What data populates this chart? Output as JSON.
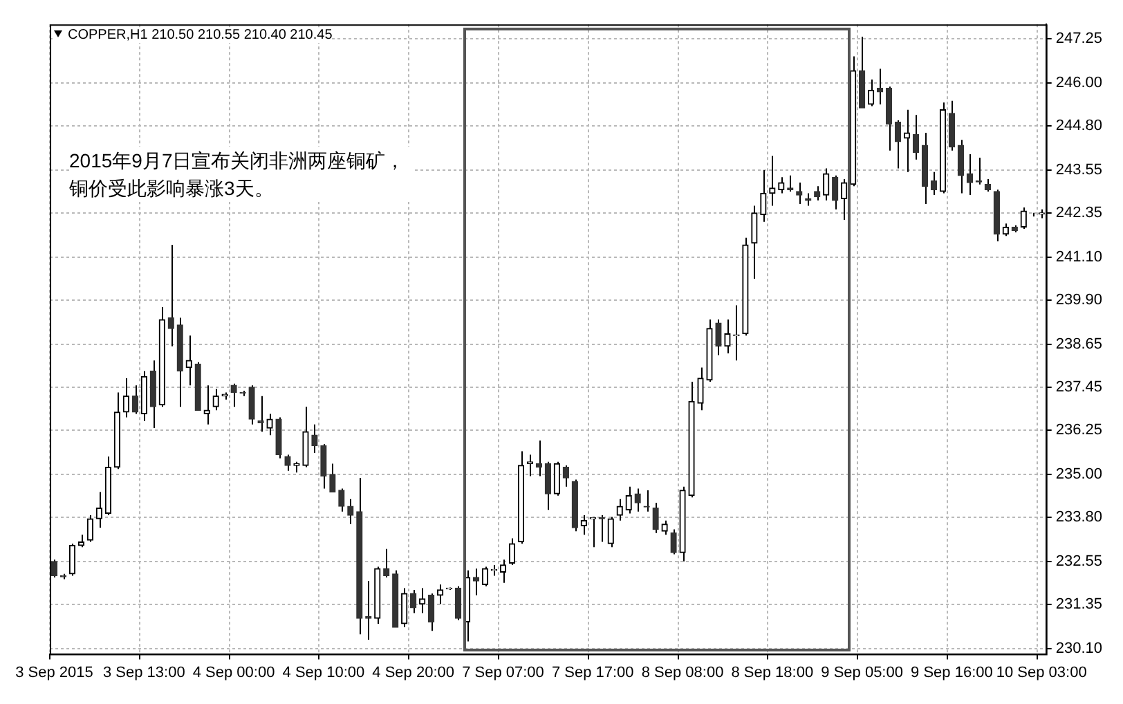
{
  "chart_data": {
    "type": "candlestick",
    "title": "COPPER,H1  210.50 210.55 210.40 210.45",
    "annotations": [
      "2015年9月7日宣布关闭非洲两座铜矿，铜价受此影响暴涨3天。"
    ],
    "categories": [
      "3 Sep 2015",
      null,
      null,
      null,
      null,
      null,
      null,
      null,
      null,
      null,
      "3 Sep 13:00",
      null,
      null,
      null,
      null,
      null,
      null,
      null,
      null,
      null,
      "4 Sep 00:00",
      null,
      null,
      null,
      null,
      null,
      null,
      null,
      null,
      null,
      "4 Sep 10:00",
      null,
      null,
      null,
      null,
      null,
      null,
      null,
      null,
      null,
      "4 Sep 20:00",
      null,
      null,
      null,
      null,
      null,
      null,
      null,
      null,
      null,
      "7 Sep 07:00",
      null,
      null,
      null,
      null,
      null,
      null,
      null,
      null,
      null,
      "7 Sep 17:00",
      null,
      null,
      null,
      null,
      null,
      null,
      null,
      null,
      null,
      "8 Sep 08:00",
      null,
      null,
      null,
      null,
      null,
      null,
      null,
      null,
      null,
      "8 Sep 18:00",
      null,
      null,
      null,
      null,
      null,
      null,
      null,
      null,
      null,
      "9 Sep 05:00",
      null,
      null,
      null,
      null,
      null,
      null,
      null,
      null,
      null,
      "9 Sep 16:00",
      null,
      null,
      null,
      null,
      null,
      null,
      null,
      null,
      null,
      "10 Sep 03:00"
    ],
    "ohlc": [
      [
        232.55,
        232.6,
        232.1,
        232.15
      ],
      [
        232.15,
        232.2,
        232.05,
        232.12
      ],
      [
        232.2,
        233.05,
        232.15,
        233.0
      ],
      [
        233.0,
        233.3,
        232.95,
        233.1
      ],
      [
        233.15,
        233.85,
        233.1,
        233.75
      ],
      [
        233.75,
        234.5,
        233.5,
        234.05
      ],
      [
        233.9,
        235.5,
        233.85,
        235.2
      ],
      [
        235.2,
        237.3,
        235.15,
        236.75
      ],
      [
        236.75,
        237.7,
        236.6,
        237.2
      ],
      [
        237.2,
        237.5,
        236.7,
        236.75
      ],
      [
        236.7,
        237.9,
        236.5,
        237.75
      ],
      [
        237.9,
        238.2,
        236.3,
        236.9
      ],
      [
        236.95,
        239.7,
        236.9,
        239.35
      ],
      [
        239.4,
        241.45,
        238.6,
        239.1
      ],
      [
        239.2,
        239.4,
        236.9,
        237.9
      ],
      [
        238.0,
        238.9,
        237.5,
        238.2
      ],
      [
        238.1,
        238.15,
        236.8,
        236.8
      ],
      [
        236.7,
        237.5,
        236.4,
        236.8
      ],
      [
        236.9,
        237.4,
        236.8,
        237.2
      ],
      [
        237.2,
        237.3,
        237.1,
        237.25
      ],
      [
        237.5,
        237.55,
        236.9,
        237.3
      ],
      [
        237.3,
        237.35,
        237.2,
        237.28
      ],
      [
        237.45,
        237.5,
        236.4,
        236.55
      ],
      [
        236.5,
        237.2,
        236.2,
        236.45
      ],
      [
        236.3,
        236.7,
        236.1,
        236.55
      ],
      [
        236.55,
        236.6,
        235.45,
        235.55
      ],
      [
        235.5,
        235.55,
        235.1,
        235.25
      ],
      [
        235.25,
        235.35,
        235.05,
        235.3
      ],
      [
        235.25,
        236.9,
        235.2,
        236.2
      ],
      [
        236.1,
        236.4,
        235.6,
        235.8
      ],
      [
        235.8,
        235.85,
        234.6,
        234.95
      ],
      [
        235.0,
        235.3,
        234.5,
        234.5
      ],
      [
        234.55,
        234.6,
        233.95,
        234.1
      ],
      [
        234.1,
        234.3,
        233.6,
        233.85
      ],
      [
        233.95,
        234.9,
        230.5,
        230.95
      ],
      [
        231.0,
        232.0,
        230.35,
        230.95
      ],
      [
        230.95,
        232.4,
        230.8,
        232.35
      ],
      [
        232.35,
        232.9,
        232.1,
        232.15
      ],
      [
        232.2,
        232.3,
        230.7,
        230.7
      ],
      [
        230.8,
        231.8,
        230.7,
        231.65
      ],
      [
        231.65,
        231.75,
        231.1,
        231.25
      ],
      [
        231.35,
        231.8,
        231.1,
        231.5
      ],
      [
        231.6,
        231.65,
        230.6,
        230.85
      ],
      [
        231.6,
        231.9,
        231.35,
        231.75
      ],
      [
        231.78,
        231.82,
        231.75,
        231.8
      ],
      [
        231.8,
        231.85,
        230.9,
        230.95
      ],
      [
        230.85,
        232.3,
        230.3,
        232.1
      ],
      [
        232.1,
        232.35,
        231.6,
        232.0
      ],
      [
        231.9,
        232.4,
        231.85,
        232.35
      ],
      [
        232.3,
        232.45,
        232.15,
        232.32
      ],
      [
        232.25,
        232.6,
        231.95,
        232.45
      ],
      [
        232.5,
        233.2,
        232.45,
        233.05
      ],
      [
        233.1,
        235.65,
        233.05,
        235.25
      ],
      [
        235.3,
        235.55,
        234.95,
        235.35
      ],
      [
        235.3,
        235.95,
        234.95,
        235.2
      ],
      [
        235.3,
        235.35,
        234.0,
        234.45
      ],
      [
        234.45,
        235.35,
        234.4,
        235.3
      ],
      [
        235.2,
        235.25,
        234.65,
        234.9
      ],
      [
        234.8,
        234.85,
        233.4,
        233.5
      ],
      [
        233.55,
        233.85,
        233.3,
        233.7
      ],
      [
        233.75,
        233.8,
        232.95,
        233.78
      ],
      [
        233.78,
        233.85,
        233.1,
        233.75
      ],
      [
        233.05,
        233.8,
        232.95,
        233.75
      ],
      [
        233.85,
        234.3,
        233.7,
        234.1
      ],
      [
        234.0,
        234.65,
        233.9,
        234.4
      ],
      [
        234.45,
        234.6,
        233.95,
        234.2
      ],
      [
        234.1,
        234.55,
        233.95,
        234.08
      ],
      [
        234.05,
        234.2,
        233.35,
        233.45
      ],
      [
        233.4,
        233.7,
        233.3,
        233.6
      ],
      [
        233.35,
        233.45,
        232.75,
        232.8
      ],
      [
        232.8,
        234.65,
        232.55,
        234.55
      ],
      [
        234.4,
        237.6,
        234.35,
        237.05
      ],
      [
        237.0,
        238.0,
        236.8,
        237.7
      ],
      [
        237.65,
        239.35,
        237.6,
        239.1
      ],
      [
        239.25,
        239.35,
        238.35,
        238.6
      ],
      [
        238.6,
        239.35,
        238.4,
        238.95
      ],
      [
        238.9,
        239.75,
        238.2,
        238.92
      ],
      [
        238.95,
        241.65,
        238.9,
        241.45
      ],
      [
        241.5,
        242.55,
        240.5,
        242.35
      ],
      [
        242.3,
        243.55,
        242.1,
        242.9
      ],
      [
        242.9,
        243.95,
        242.55,
        243.05
      ],
      [
        243.0,
        243.35,
        242.9,
        243.2
      ],
      [
        243.05,
        243.4,
        242.95,
        243.0
      ],
      [
        242.95,
        243.2,
        242.6,
        242.85
      ],
      [
        242.75,
        242.9,
        242.55,
        242.7
      ],
      [
        242.95,
        243.1,
        242.7,
        242.8
      ],
      [
        242.85,
        243.6,
        242.7,
        243.45
      ],
      [
        243.35,
        243.4,
        242.45,
        242.7
      ],
      [
        242.75,
        243.3,
        242.15,
        243.2
      ],
      [
        243.15,
        246.75,
        243.1,
        246.35
      ],
      [
        246.35,
        247.3,
        245.3,
        245.3
      ],
      [
        245.4,
        246.1,
        245.35,
        245.8
      ],
      [
        245.85,
        246.4,
        245.4,
        245.75
      ],
      [
        245.85,
        245.9,
        244.1,
        244.85
      ],
      [
        244.9,
        244.95,
        243.6,
        244.35
      ],
      [
        244.45,
        245.25,
        243.5,
        244.6
      ],
      [
        244.55,
        245.1,
        243.85,
        244.05
      ],
      [
        244.25,
        244.6,
        242.6,
        243.1
      ],
      [
        243.25,
        243.5,
        242.85,
        243.0
      ],
      [
        242.95,
        245.45,
        242.9,
        245.25
      ],
      [
        245.15,
        245.5,
        244.1,
        244.2
      ],
      [
        244.25,
        244.4,
        242.9,
        243.4
      ],
      [
        243.45,
        244.0,
        242.85,
        243.2
      ],
      [
        243.25,
        243.9,
        243.15,
        243.22
      ],
      [
        243.15,
        243.3,
        242.95,
        243.0
      ],
      [
        242.95,
        243.0,
        241.55,
        241.75
      ],
      [
        241.75,
        242.05,
        241.7,
        241.95
      ],
      [
        241.95,
        242.0,
        241.8,
        241.85
      ],
      [
        241.95,
        242.5,
        241.9,
        242.4
      ],
      [
        242.3,
        242.35,
        242.25,
        242.3
      ],
      [
        242.32,
        242.45,
        242.2,
        242.35
      ]
    ],
    "ylim": [
      229.95,
      247.65
    ],
    "yticks": [
      {
        "value": 230.1,
        "label": "230.10"
      },
      {
        "value": 231.35,
        "label": "231.35"
      },
      {
        "value": 232.55,
        "label": "232.55"
      },
      {
        "value": 233.8,
        "label": "233.80"
      },
      {
        "value": 235.0,
        "label": "235.00"
      },
      {
        "value": 236.25,
        "label": "236.25"
      },
      {
        "value": 237.45,
        "label": "237.45"
      },
      {
        "value": 238.65,
        "label": "238.65"
      },
      {
        "value": 239.9,
        "label": "239.90"
      },
      {
        "value": 241.1,
        "label": "241.10"
      },
      {
        "value": 242.35,
        "label": "242.35"
      },
      {
        "value": 243.55,
        "label": "243.55"
      },
      {
        "value": 244.8,
        "label": "244.80"
      },
      {
        "value": 246.0,
        "label": "246.00"
      },
      {
        "value": 247.25,
        "label": "247.25"
      }
    ],
    "grid": true,
    "legend": false
  }
}
